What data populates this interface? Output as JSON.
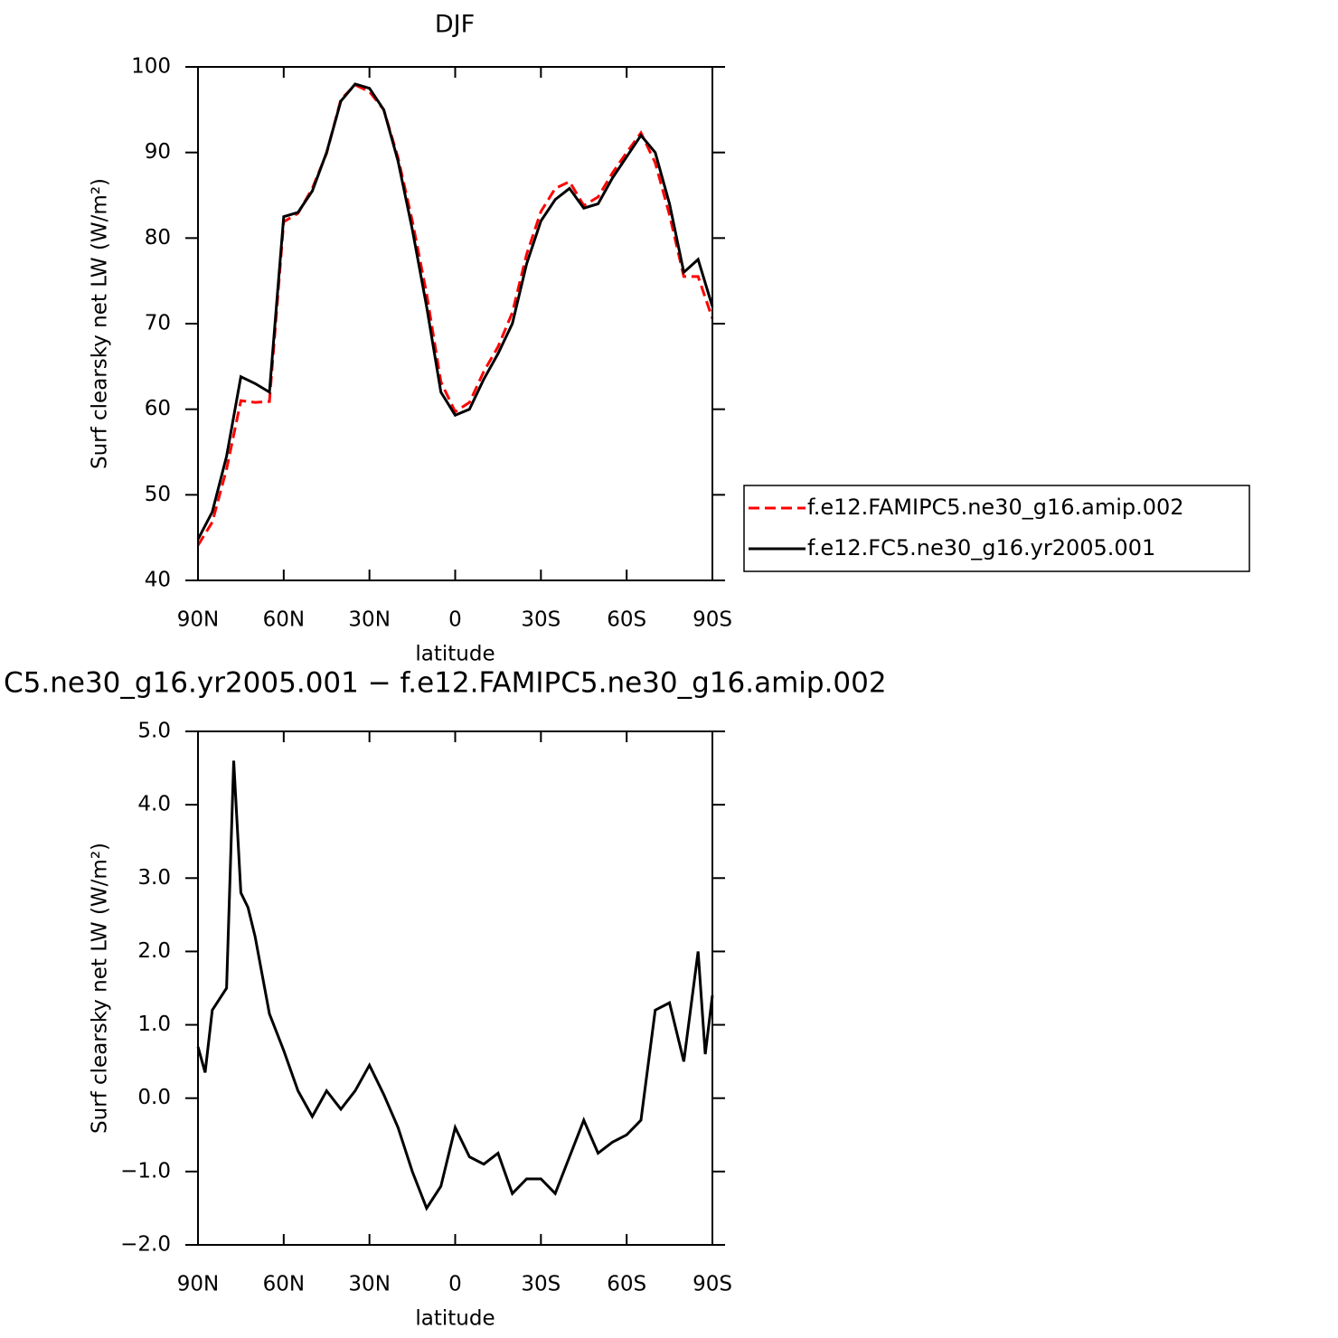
{
  "chart_data": [
    {
      "type": "line",
      "title": "DJF",
      "xlabel": "latitude",
      "ylabel": "Surf clearsky net LW (W/m²)",
      "x": [
        90,
        85,
        80,
        75,
        70,
        65,
        60,
        55,
        50,
        45,
        40,
        35,
        30,
        25,
        20,
        15,
        10,
        5,
        0,
        -5,
        -10,
        -15,
        -20,
        -25,
        -30,
        -35,
        -40,
        -45,
        -50,
        -55,
        -60,
        -65,
        -70,
        -75,
        -80,
        -85,
        -90
      ],
      "series": [
        {
          "name": "f.e12.FAMIPC5.ne30_g16.amip.002",
          "color": "#ff0000",
          "line_style": "dashed",
          "values": [
            44.1,
            46.8,
            53,
            61,
            60.8,
            60.9,
            81.9,
            82.9,
            85.8,
            89.9,
            96.2,
            97.9,
            97.1,
            95,
            89.4,
            82,
            73.5,
            63.2,
            59.7,
            60.8,
            64.4,
            67.3,
            71.3,
            78.1,
            83.1,
            85.8,
            86.6,
            83.8,
            84.8,
            87.6,
            90,
            92.3,
            88.8,
            82.7,
            75.5,
            75.5,
            70.6
          ]
        },
        {
          "name": "f.e12.FC5.ne30_g16.yr2005.001",
          "color": "#000000",
          "line_style": "solid",
          "values": [
            44.8,
            48,
            54.5,
            63.8,
            63,
            62,
            82.5,
            83,
            85.5,
            90,
            96,
            98,
            97.5,
            95,
            89,
            81,
            72,
            62,
            59.3,
            60,
            63.5,
            66.5,
            70,
            77,
            82,
            84.5,
            85.8,
            83.5,
            84,
            87,
            89.5,
            92,
            90,
            84,
            76,
            77.5,
            72
          ]
        }
      ],
      "xlim": [
        90,
        -90
      ],
      "xticks": [
        {
          "value": 90,
          "label": "90N"
        },
        {
          "value": 60,
          "label": "60N"
        },
        {
          "value": 30,
          "label": "30N"
        },
        0,
        {
          "value": -30,
          "label": "30S"
        },
        {
          "value": -60,
          "label": "60S"
        },
        {
          "value": -90,
          "label": "90S"
        }
      ],
      "ylim": [
        40,
        100
      ],
      "yticks": [
        40,
        50,
        60,
        70,
        80,
        90,
        100
      ],
      "legend": "right"
    },
    {
      "type": "line",
      "title": "C5.ne30_g16.yr2005.001 − f.e12.FAMIPC5.ne30_g16.amip.002",
      "xlabel": "latitude",
      "ylabel": "Surf clearsky net LW (W/m²)",
      "x": [
        90,
        87.5,
        85,
        80,
        77.5,
        75,
        72.5,
        70,
        65,
        60,
        55,
        50,
        45,
        40,
        35,
        30,
        25,
        20,
        15,
        10,
        5,
        0,
        -5,
        -10,
        -15,
        -20,
        -25,
        -30,
        -35,
        -40,
        -45,
        -50,
        -55,
        -60,
        -65,
        -70,
        -75,
        -80,
        -85,
        -87.5,
        -90
      ],
      "values": [
        0.7,
        0.35,
        1.2,
        1.5,
        4.6,
        2.8,
        2.6,
        2.2,
        1.15,
        0.65,
        0.1,
        -0.25,
        0.1,
        -0.15,
        0.1,
        0.45,
        0.05,
        -0.4,
        -1.0,
        -1.5,
        -1.2,
        -0.4,
        -0.8,
        -0.9,
        -0.75,
        -1.3,
        -1.1,
        -1.1,
        -1.3,
        -0.8,
        -0.3,
        -0.75,
        -0.6,
        -0.5,
        -0.3,
        1.2,
        1.3,
        0.5,
        2.0,
        0.6,
        1.4
      ],
      "color": "#000000",
      "xlim": [
        90,
        -90
      ],
      "xticks": [
        {
          "value": 90,
          "label": "90N"
        },
        {
          "value": 60,
          "label": "60N"
        },
        {
          "value": 30,
          "label": "30N"
        },
        0,
        {
          "value": -30,
          "label": "30S"
        },
        {
          "value": -60,
          "label": "60S"
        },
        {
          "value": -90,
          "label": "90S"
        }
      ],
      "ylim": [
        -2,
        5
      ],
      "yticks": [
        {
          "value": -2,
          "label": "−2.0"
        },
        {
          "value": -1,
          "label": "−1.0"
        },
        {
          "value": 0,
          "label": "0.0"
        },
        {
          "value": 1,
          "label": "1.0"
        },
        {
          "value": 2,
          "label": "2.0"
        },
        {
          "value": 3,
          "label": "3.0"
        },
        {
          "value": 4,
          "label": "4.0"
        },
        {
          "value": 5,
          "label": "5.0"
        }
      ]
    }
  ]
}
